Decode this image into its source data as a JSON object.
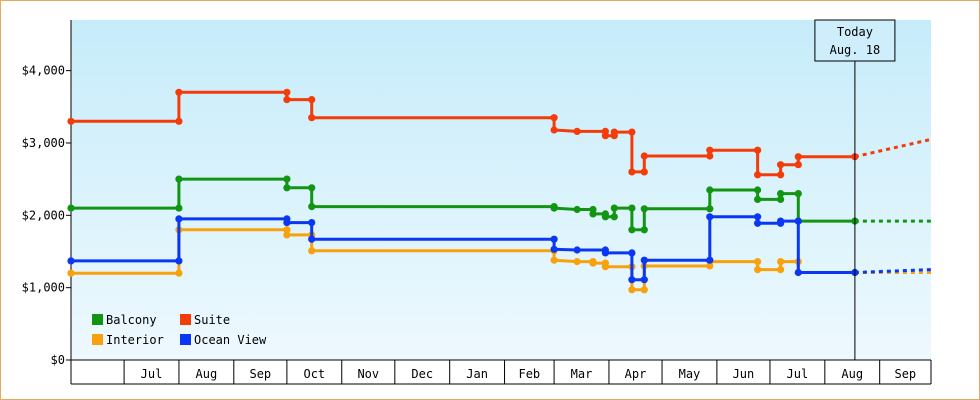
{
  "chart_data": {
    "type": "line",
    "title": "",
    "xlabel": "",
    "ylabel": "",
    "ylim": [
      0,
      4700
    ],
    "xlim": [
      "2014-06-01",
      "2015-09-30"
    ],
    "yticks": [
      {
        "value": 0,
        "label": "$0"
      },
      {
        "value": 1000,
        "label": "$1,000"
      },
      {
        "value": 2000,
        "label": "$2,000"
      },
      {
        "value": 3000,
        "label": "$3,000"
      },
      {
        "value": 4000,
        "label": "$4,000"
      }
    ],
    "month_labels": [
      {
        "date": "2014-07-01",
        "label": "Jul"
      },
      {
        "date": "2014-08-01",
        "label": "Aug"
      },
      {
        "date": "2014-09-01",
        "label": "Sep"
      },
      {
        "date": "2014-10-01",
        "label": "Oct"
      },
      {
        "date": "2014-11-01",
        "label": "Nov"
      },
      {
        "date": "2014-12-01",
        "label": "Dec"
      },
      {
        "date": "2015-01-01",
        "label": "Jan"
      },
      {
        "date": "2015-02-01",
        "label": "Feb"
      },
      {
        "date": "2015-03-01",
        "label": "Mar"
      },
      {
        "date": "2015-04-01",
        "label": "Apr"
      },
      {
        "date": "2015-05-01",
        "label": "May"
      },
      {
        "date": "2015-06-01",
        "label": "Jun"
      },
      {
        "date": "2015-07-01",
        "label": "Jul"
      },
      {
        "date": "2015-08-01",
        "label": "Aug"
      },
      {
        "date": "2015-09-01",
        "label": "Sep"
      }
    ],
    "today": {
      "date": "2015-08-18",
      "label_line1": "Today",
      "label_line2": "Aug. 18"
    },
    "grid": false,
    "legend_position": "bottom-left",
    "series": [
      {
        "name": "Balcony",
        "color": "#129512",
        "points": [
          [
            "2014-06-01",
            2100
          ],
          [
            "2014-08-01",
            2100
          ],
          [
            "2014-08-01",
            2500
          ],
          [
            "2014-10-01",
            2500
          ],
          [
            "2014-10-01",
            2380
          ],
          [
            "2014-10-15",
            2380
          ],
          [
            "2014-10-15",
            2120
          ],
          [
            "2015-03-01",
            2120
          ],
          [
            "2015-03-01",
            2100
          ],
          [
            "2015-03-14",
            2080
          ],
          [
            "2015-03-23",
            2080
          ],
          [
            "2015-03-23",
            2020
          ],
          [
            "2015-03-30",
            2020
          ],
          [
            "2015-03-30",
            1980
          ],
          [
            "2015-04-04",
            1980
          ],
          [
            "2015-04-04",
            2100
          ],
          [
            "2015-04-14",
            2100
          ],
          [
            "2015-04-14",
            1800
          ],
          [
            "2015-04-21",
            1800
          ],
          [
            "2015-04-21",
            2090
          ],
          [
            "2015-05-28",
            2090
          ],
          [
            "2015-05-28",
            2350
          ],
          [
            "2015-06-24",
            2350
          ],
          [
            "2015-06-24",
            2220
          ],
          [
            "2015-07-07",
            2220
          ],
          [
            "2015-07-07",
            2300
          ],
          [
            "2015-07-17",
            2300
          ],
          [
            "2015-07-17",
            1920
          ],
          [
            "2015-08-18",
            1920
          ]
        ],
        "projection": [
          [
            "2015-08-18",
            1920
          ],
          [
            "2015-09-30",
            1920
          ]
        ]
      },
      {
        "name": "Suite",
        "color": "#f43c0a",
        "points": [
          [
            "2014-06-01",
            3300
          ],
          [
            "2014-08-01",
            3300
          ],
          [
            "2014-08-01",
            3700
          ],
          [
            "2014-10-01",
            3700
          ],
          [
            "2014-10-01",
            3600
          ],
          [
            "2014-10-15",
            3600
          ],
          [
            "2014-10-15",
            3350
          ],
          [
            "2015-03-01",
            3350
          ],
          [
            "2015-03-01",
            3180
          ],
          [
            "2015-03-14",
            3160
          ],
          [
            "2015-03-30",
            3160
          ],
          [
            "2015-03-30",
            3100
          ],
          [
            "2015-04-04",
            3100
          ],
          [
            "2015-04-04",
            3150
          ],
          [
            "2015-04-14",
            3150
          ],
          [
            "2015-04-14",
            2600
          ],
          [
            "2015-04-21",
            2600
          ],
          [
            "2015-04-21",
            2820
          ],
          [
            "2015-05-28",
            2820
          ],
          [
            "2015-05-28",
            2900
          ],
          [
            "2015-06-24",
            2900
          ],
          [
            "2015-06-24",
            2560
          ],
          [
            "2015-07-07",
            2560
          ],
          [
            "2015-07-07",
            2700
          ],
          [
            "2015-07-17",
            2700
          ],
          [
            "2015-07-17",
            2810
          ],
          [
            "2015-08-18",
            2810
          ]
        ],
        "projection": [
          [
            "2015-08-18",
            2810
          ],
          [
            "2015-09-30",
            3050
          ]
        ]
      },
      {
        "name": "Interior",
        "color": "#f9a10c",
        "points": [
          [
            "2014-06-01",
            1200
          ],
          [
            "2014-08-01",
            1200
          ],
          [
            "2014-08-01",
            1800
          ],
          [
            "2014-10-01",
            1800
          ],
          [
            "2014-10-01",
            1730
          ],
          [
            "2014-10-15",
            1730
          ],
          [
            "2014-10-15",
            1510
          ],
          [
            "2015-03-01",
            1510
          ],
          [
            "2015-03-01",
            1380
          ],
          [
            "2015-03-14",
            1360
          ],
          [
            "2015-03-23",
            1360
          ],
          [
            "2015-03-23",
            1340
          ],
          [
            "2015-03-30",
            1340
          ],
          [
            "2015-03-30",
            1290
          ],
          [
            "2015-04-14",
            1290
          ],
          [
            "2015-04-14",
            970
          ],
          [
            "2015-04-21",
            970
          ],
          [
            "2015-04-21",
            1300
          ],
          [
            "2015-05-28",
            1300
          ],
          [
            "2015-05-28",
            1360
          ],
          [
            "2015-06-24",
            1360
          ],
          [
            "2015-06-24",
            1250
          ],
          [
            "2015-07-07",
            1250
          ],
          [
            "2015-07-07",
            1360
          ],
          [
            "2015-07-17",
            1360
          ],
          [
            "2015-07-17",
            1210
          ],
          [
            "2015-08-18",
            1210
          ]
        ],
        "projection": [
          [
            "2015-08-18",
            1210
          ],
          [
            "2015-09-30",
            1210
          ]
        ]
      },
      {
        "name": "Ocean View",
        "color": "#0a37f4",
        "points": [
          [
            "2014-06-01",
            1370
          ],
          [
            "2014-08-01",
            1370
          ],
          [
            "2014-08-01",
            1950
          ],
          [
            "2014-10-01",
            1950
          ],
          [
            "2014-10-01",
            1900
          ],
          [
            "2014-10-15",
            1900
          ],
          [
            "2014-10-15",
            1670
          ],
          [
            "2015-03-01",
            1670
          ],
          [
            "2015-03-01",
            1530
          ],
          [
            "2015-03-14",
            1520
          ],
          [
            "2015-03-30",
            1520
          ],
          [
            "2015-03-30",
            1480
          ],
          [
            "2015-04-14",
            1480
          ],
          [
            "2015-04-14",
            1110
          ],
          [
            "2015-04-21",
            1110
          ],
          [
            "2015-04-21",
            1380
          ],
          [
            "2015-05-28",
            1380
          ],
          [
            "2015-05-28",
            1980
          ],
          [
            "2015-06-24",
            1980
          ],
          [
            "2015-06-24",
            1890
          ],
          [
            "2015-07-07",
            1890
          ],
          [
            "2015-07-07",
            1920
          ],
          [
            "2015-07-17",
            1920
          ],
          [
            "2015-07-17",
            1210
          ],
          [
            "2015-08-18",
            1210
          ]
        ],
        "projection": [
          [
            "2015-08-18",
            1210
          ],
          [
            "2015-09-30",
            1250
          ]
        ]
      }
    ]
  }
}
